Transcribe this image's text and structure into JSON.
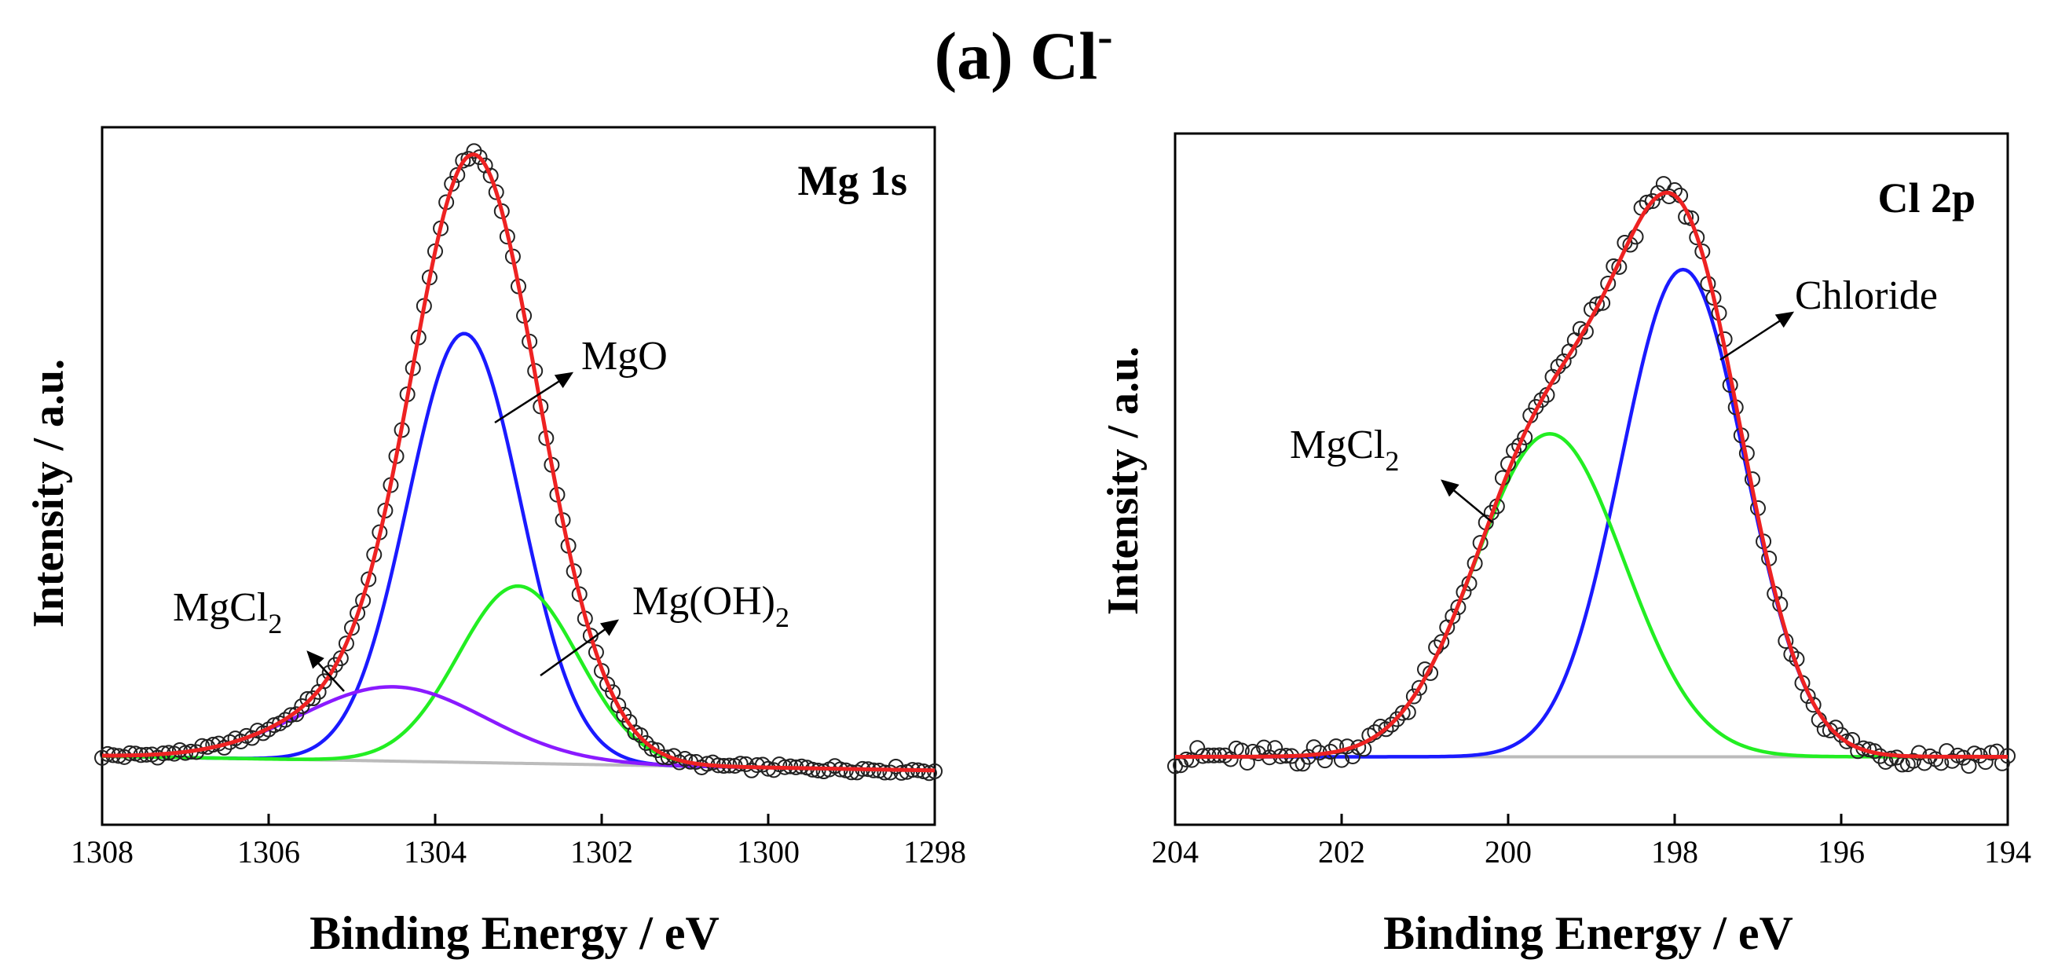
{
  "figure": {
    "title_main": "(a) Cl",
    "title_sup": "-"
  },
  "chart_data": [
    {
      "type": "line",
      "panel_label": "Mg 1s",
      "xlabel": "Binding Energy / eV",
      "ylabel": "Intensity / a.u.",
      "xlim": [
        1308,
        1298
      ],
      "x_reversed": true,
      "ylim": [
        -0.12,
        1.1
      ],
      "xticks": [
        1308,
        1306,
        1304,
        1302,
        1300,
        1298
      ],
      "y_ticks_labeled": false,
      "grid": false,
      "baseline_slope": [
        0.0,
        -0.025
      ],
      "peaks": [
        {
          "name": "MgO",
          "label_base": "MgO",
          "label_sub": "",
          "color": "#1a1aff",
          "center": 1303.65,
          "height": 0.75,
          "fwhm": 1.6
        },
        {
          "name": "Mg(OH)2",
          "label_base": "Mg(OH)",
          "label_sub": "2",
          "color": "#22ee22",
          "center": 1303.0,
          "height": 0.31,
          "fwhm": 1.7
        },
        {
          "name": "MgCl2",
          "label_base": "MgCl",
          "label_sub": "2",
          "color": "#8a1aff",
          "center": 1304.5,
          "height": 0.13,
          "fwhm": 2.6
        }
      ],
      "envelope_color": "#ee2222",
      "baseline_color": "#bbbbbb",
      "data_marker": "open-circle"
    },
    {
      "type": "line",
      "panel_label": "Cl 2p",
      "xlabel": "Binding Energy / eV",
      "ylabel": "Intensity / a.u.",
      "xlim": [
        204,
        194
      ],
      "x_reversed": true,
      "ylim": [
        -0.12,
        1.1
      ],
      "xticks": [
        204,
        202,
        200,
        198,
        196,
        194
      ],
      "y_ticks_labeled": false,
      "grid": false,
      "baseline_slope": [
        0.0,
        0.0
      ],
      "peaks": [
        {
          "name": "Chloride",
          "label_base": "Chloride",
          "label_sub": "",
          "color": "#1a1aff",
          "center": 197.9,
          "height": 0.86,
          "fwhm": 1.75
        },
        {
          "name": "MgCl2",
          "label_base": "MgCl",
          "label_sub": "2",
          "color": "#22ee22",
          "center": 199.5,
          "height": 0.57,
          "fwhm": 2.1
        }
      ],
      "envelope_color": "#ee2222",
      "baseline_color": "#bbbbbb",
      "data_marker": "open-circle"
    }
  ]
}
